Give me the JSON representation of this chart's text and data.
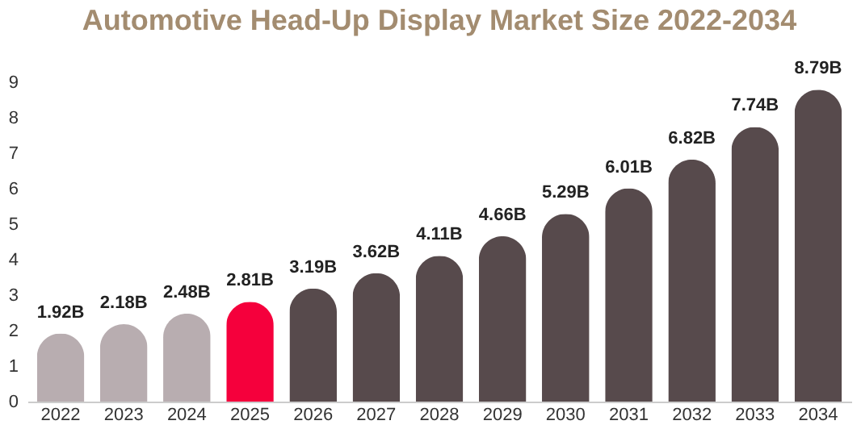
{
  "chart_data": {
    "type": "bar",
    "title": "Automotive Head-Up Display Market Size 2022-2034",
    "categories": [
      "2022",
      "2023",
      "2024",
      "2025",
      "2026",
      "2027",
      "2028",
      "2029",
      "2030",
      "2031",
      "2032",
      "2033",
      "2034"
    ],
    "values": [
      1.92,
      2.18,
      2.48,
      2.81,
      3.19,
      3.62,
      4.11,
      4.66,
      5.29,
      6.01,
      6.82,
      7.74,
      8.79
    ],
    "value_labels": [
      "1.92B",
      "2.18B",
      "2.48B",
      "2.81B",
      "3.19B",
      "3.62B",
      "4.11B",
      "4.66B",
      "5.29B",
      "6.01B",
      "6.82B",
      "7.74B",
      "8.79B"
    ],
    "colors": [
      "#b8adb0",
      "#b8adb0",
      "#b8adb0",
      "#f5003c",
      "#574a4c",
      "#574a4c",
      "#574a4c",
      "#574a4c",
      "#574a4c",
      "#574a4c",
      "#574a4c",
      "#574a4c",
      "#574a4c"
    ],
    "ylim": [
      0,
      9
    ],
    "yticks": [
      0,
      1,
      2,
      3,
      4,
      5,
      6,
      7,
      8,
      9
    ],
    "grid": false
  }
}
